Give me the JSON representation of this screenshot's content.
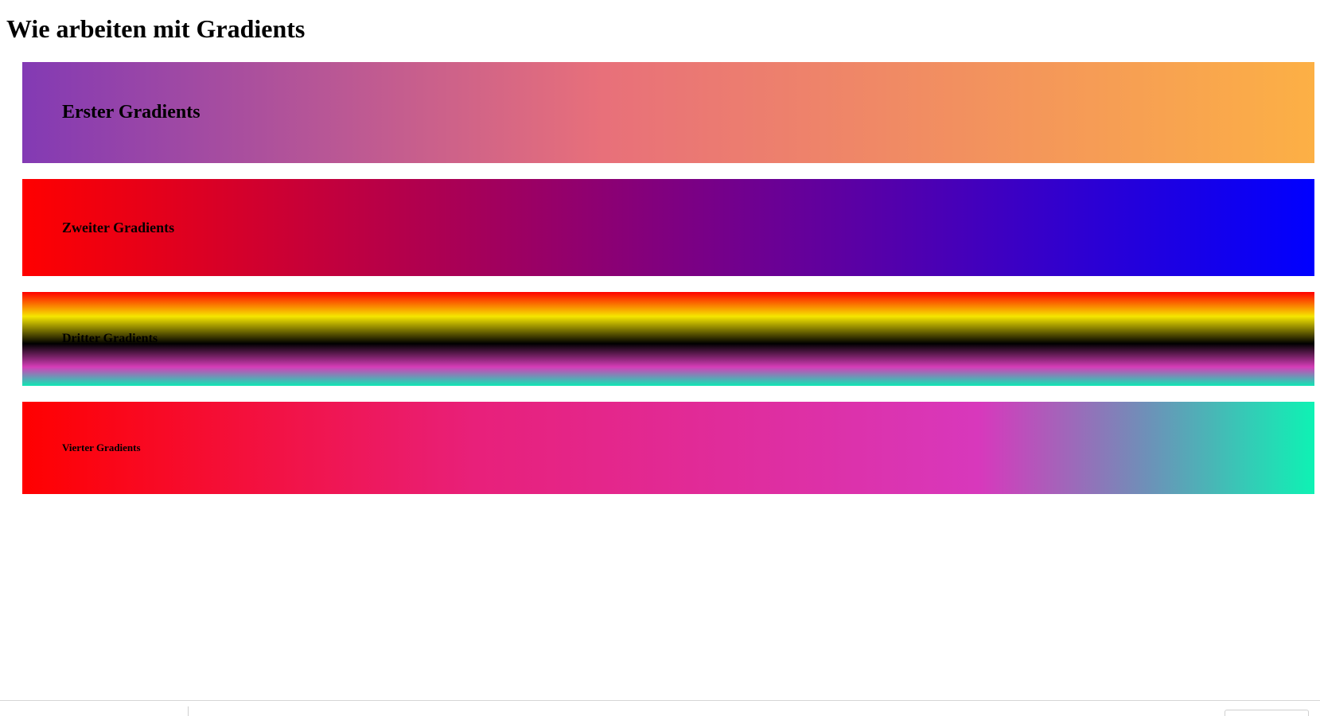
{
  "page": {
    "title": "Wie arbeiten mit Gradients"
  },
  "gradients": [
    {
      "label": "Erster Gradients",
      "colors": [
        "#833ab4",
        "#e8707a",
        "#fcb045"
      ]
    },
    {
      "label": "Zweiter Gradients",
      "colors": [
        "#ff0000",
        "#0000ff"
      ]
    },
    {
      "label": "Dritter Gradients",
      "colors": [
        "#ff0000",
        "#f6e600",
        "#000000",
        "#d63db8",
        "#0ee8b4"
      ]
    },
    {
      "label": "Vierter Gradients",
      "colors": [
        "#ff0000",
        "#e8207a",
        "#d838bc",
        "#0ef2b4"
      ]
    }
  ]
}
